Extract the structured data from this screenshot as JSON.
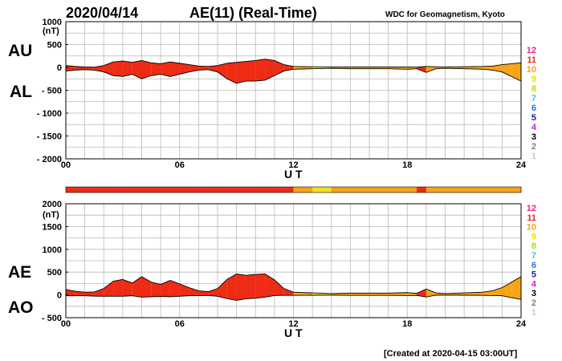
{
  "header": {
    "date": "2020/04/14",
    "title": "AE(11) (Real-Time)",
    "source": "WDC for Geomagnetism, Kyoto"
  },
  "footer": {
    "created": "[Created at 2020-04-15 03:00UT]"
  },
  "colors": {
    "hours_11": "#ee2b14",
    "hours_10": "#f7a417",
    "hours_9": "#f0e020",
    "grid": "#b8b8b8"
  },
  "legend": {
    "items": [
      {
        "label": "12",
        "color": "#f0208c"
      },
      {
        "label": "11",
        "color": "#ee2b14"
      },
      {
        "label": "10",
        "color": "#f7a417"
      },
      {
        "label": "9",
        "color": "#eedc16"
      },
      {
        "label": "8",
        "color": "#a6e01a"
      },
      {
        "label": "7",
        "color": "#38c0e8"
      },
      {
        "label": "6",
        "color": "#2a6fe0"
      },
      {
        "label": "5",
        "color": "#2016b4"
      },
      {
        "label": "4",
        "color": "#d020d0"
      },
      {
        "label": "3",
        "color": "#000000"
      },
      {
        "label": "2",
        "color": "#808080"
      },
      {
        "label": "1",
        "color": "#c8c8c8"
      }
    ]
  },
  "chart_data": [
    {
      "type": "area",
      "panel": "AU/AL",
      "series_labels": [
        "AU",
        "AL"
      ],
      "yunit": "(nT)",
      "ylim": [
        -2000,
        1000
      ],
      "yticks": [
        1000,
        500,
        0,
        -500,
        -1000,
        -1500,
        -2000
      ],
      "ytick_labels": [
        "1000",
        "500",
        "0",
        "- 500",
        "- 1000",
        "- 1500",
        "- 2000"
      ],
      "xlabel": "U T",
      "xlim": [
        0,
        24
      ],
      "xticks": [
        0,
        6,
        12,
        18,
        24
      ],
      "xtick_labels": [
        "00",
        "06",
        "12",
        "18",
        "24"
      ],
      "grid": true,
      "x": [
        0,
        0.5,
        1,
        1.5,
        2,
        2.5,
        3,
        3.5,
        4,
        4.5,
        5,
        5.5,
        6,
        6.5,
        7,
        7.5,
        8,
        8.5,
        9,
        9.5,
        10,
        10.5,
        11,
        11.5,
        12,
        13,
        14,
        15,
        16,
        17,
        18,
        18.5,
        19,
        19.5,
        20,
        21,
        22,
        22.5,
        23,
        23.5,
        24
      ],
      "au": [
        40,
        20,
        10,
        5,
        40,
        120,
        140,
        110,
        150,
        100,
        80,
        120,
        90,
        60,
        30,
        20,
        40,
        90,
        110,
        130,
        150,
        180,
        150,
        60,
        20,
        15,
        10,
        10,
        10,
        10,
        10,
        5,
        20,
        15,
        10,
        15,
        20,
        30,
        60,
        80,
        100
      ],
      "al": [
        -80,
        -60,
        -50,
        -60,
        -100,
        -180,
        -200,
        -150,
        -250,
        -180,
        -150,
        -200,
        -150,
        -100,
        -60,
        -50,
        -100,
        -250,
        -350,
        -300,
        -300,
        -280,
        -180,
        -80,
        -40,
        -30,
        -20,
        -30,
        -30,
        -30,
        -40,
        -30,
        -110,
        -30,
        -20,
        -30,
        -40,
        -60,
        -100,
        -200,
        -300
      ],
      "activity_hours": [
        11,
        11,
        11,
        11,
        11,
        11,
        11,
        11,
        11,
        11,
        11,
        11,
        11,
        11,
        11,
        11,
        11,
        11,
        11,
        11,
        11,
        11,
        11,
        11,
        10,
        9,
        10,
        10,
        10,
        10,
        10,
        11,
        10,
        10,
        10,
        10,
        10,
        10,
        10,
        10,
        10
      ]
    },
    {
      "type": "area",
      "panel": "AE/AO",
      "series_labels": [
        "AE",
        "AO"
      ],
      "yunit": "(nT)",
      "ylim": [
        -500,
        2000
      ],
      "yticks": [
        2000,
        1500,
        1000,
        500,
        0,
        -500
      ],
      "ytick_labels": [
        "2000",
        "1500",
        "1000",
        "500",
        "0",
        "- 500"
      ],
      "xlabel": "U T",
      "xlim": [
        0,
        24
      ],
      "xticks": [
        0,
        6,
        12,
        18,
        24
      ],
      "xtick_labels": [
        "00",
        "06",
        "12",
        "18",
        "24"
      ],
      "grid": true,
      "x": [
        0,
        0.5,
        1,
        1.5,
        2,
        2.5,
        3,
        3.5,
        4,
        4.5,
        5,
        5.5,
        6,
        6.5,
        7,
        7.5,
        8,
        8.5,
        9,
        9.5,
        10,
        10.5,
        11,
        11.5,
        12,
        13,
        14,
        15,
        16,
        17,
        18,
        18.5,
        19,
        19.5,
        20,
        21,
        22,
        22.5,
        23,
        23.5,
        24
      ],
      "ae": [
        120,
        80,
        60,
        65,
        140,
        300,
        340,
        260,
        400,
        280,
        230,
        320,
        240,
        160,
        90,
        70,
        140,
        340,
        460,
        430,
        450,
        460,
        330,
        140,
        60,
        45,
        30,
        40,
        40,
        40,
        50,
        35,
        130,
        45,
        30,
        45,
        60,
        90,
        160,
        280,
        400
      ],
      "ao": [
        -20,
        -20,
        -20,
        -27,
        -30,
        -30,
        -30,
        -20,
        -50,
        -40,
        -35,
        -40,
        -30,
        -20,
        -15,
        -15,
        -30,
        -80,
        -120,
        -85,
        -75,
        -50,
        -15,
        -10,
        -10,
        -7,
        -5,
        -10,
        -10,
        -10,
        -15,
        -12,
        -45,
        -7,
        -5,
        -7,
        -10,
        -15,
        -20,
        -60,
        -100
      ],
      "activity_hours": [
        11,
        11,
        11,
        11,
        11,
        11,
        11,
        11,
        11,
        11,
        11,
        11,
        11,
        11,
        11,
        11,
        11,
        11,
        11,
        11,
        11,
        11,
        11,
        11,
        10,
        9,
        10,
        10,
        10,
        10,
        10,
        11,
        10,
        10,
        10,
        10,
        10,
        10,
        10,
        10,
        10
      ]
    }
  ]
}
